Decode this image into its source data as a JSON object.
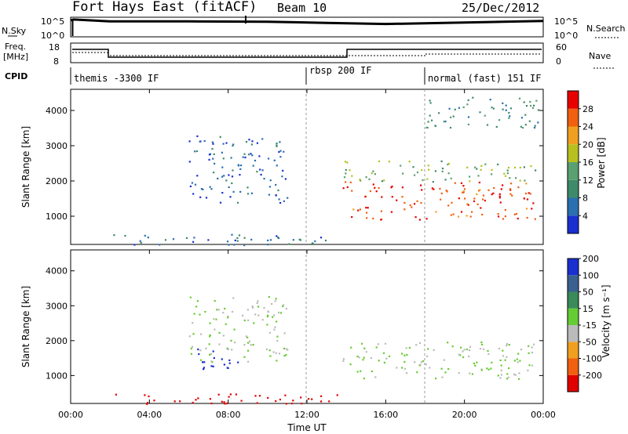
{
  "header": {
    "title": "Fort Hays East (fitACF)",
    "beam": "Beam 10",
    "date": "25/Dec/2012"
  },
  "sky_panel": {
    "left_label": "N.Sky",
    "left_ticks": [
      "10^5",
      "10^0"
    ],
    "right_label": "N.Search",
    "right_ticks": [
      "10^5",
      "10^0"
    ]
  },
  "freq_panel": {
    "left_label_line1": "Freq.",
    "left_label_line2": "[MHz]",
    "left_ticks": [
      "18",
      "8"
    ],
    "right_label": "Nave",
    "right_ticks": [
      "60",
      "0"
    ]
  },
  "cpid_panel": {
    "label": "CPID",
    "segments": [
      {
        "label": "themis -3300 IF"
      },
      {
        "label": "rbsp 200 IF"
      },
      {
        "label": "normal (fast) 151 IF"
      }
    ]
  },
  "power_panel": {
    "ylabel": "Slant Range [km]",
    "yticks": [
      "1000",
      "2000",
      "3000",
      "4000"
    ],
    "colorbar_label": "Power [dB]",
    "colorbar_ticks": [
      "4",
      "8",
      "12",
      "16",
      "20",
      "24",
      "28"
    ]
  },
  "velocity_panel": {
    "ylabel": "Slant Range [km]",
    "yticks": [
      "1000",
      "2000",
      "3000",
      "4000"
    ],
    "colorbar_label": "Velocity [m s⁻¹]",
    "colorbar_ticks": [
      "200",
      "100",
      "50",
      "15",
      "-15",
      "-50",
      "-100",
      "-200"
    ]
  },
  "x_axis": {
    "label": "Time UT",
    "ticks": [
      "00:00",
      "04:00",
      "08:00",
      "12:00",
      "16:00",
      "20:00",
      "00:00"
    ]
  },
  "colors": {
    "power_scale": [
      "#1a2fd0",
      "#2a6fb0",
      "#3f8a6a",
      "#5aa070",
      "#b8c020",
      "#f0a020",
      "#f06010",
      "#e80000"
    ],
    "velocity_scale": [
      "#1a2fd0",
      "#3a6090",
      "#3a8a5a",
      "#66cc33",
      "#bbbbbb",
      "#f0a020",
      "#f06010",
      "#e00000"
    ]
  },
  "chart_data": [
    {
      "type": "line",
      "title": "N.Sky",
      "x_unit": "hours UT",
      "series": [
        {
          "x": [
            0,
            0.15,
            2,
            6,
            10,
            13,
            16,
            20,
            24
          ],
          "y": [
            4.2,
            4.4,
            3.9,
            3.9,
            3.8,
            3.5,
            3.2,
            3.6,
            4.0
          ]
        }
      ],
      "ylim": [
        0,
        5
      ]
    },
    {
      "type": "line",
      "title": "Freq.",
      "x_unit": "hours UT",
      "series": [
        {
          "x": [
            0,
            2,
            2,
            14,
            14,
            24
          ],
          "y": [
            13.5,
            13.5,
            10.2,
            10.2,
            13.5,
            13.5
          ]
        }
      ],
      "ylim": [
        8,
        18
      ]
    },
    {
      "type": "heatmap",
      "title": "Power [dB]",
      "x_range": [
        0,
        24
      ],
      "y_range": [
        200,
        4600
      ],
      "zlim": [
        0,
        30
      ],
      "regions": [
        {
          "t": [
            6,
            11
          ],
          "range": [
            1400,
            3300
          ],
          "power": 5
        },
        {
          "t": [
            13.8,
            23.6
          ],
          "range": [
            900,
            2000
          ],
          "power": 26
        },
        {
          "t": [
            13.8,
            23.6
          ],
          "range": [
            2000,
            2600
          ],
          "power": 14
        },
        {
          "t": [
            18,
            23.8
          ],
          "range": [
            3500,
            4400
          ],
          "power": 10
        },
        {
          "t": [
            2,
            14
          ],
          "range": [
            200,
            500
          ],
          "power": 6
        }
      ]
    },
    {
      "type": "heatmap",
      "title": "Velocity [m s⁻¹]",
      "x_range": [
        0,
        24
      ],
      "y_range": [
        200,
        4600
      ],
      "zlim": [
        -250,
        250
      ],
      "regions": [
        {
          "t": [
            6,
            11
          ],
          "range": [
            1400,
            3300
          ],
          "velocity": 0
        },
        {
          "t": [
            6,
            8.5
          ],
          "range": [
            1200,
            1800
          ],
          "velocity": 30
        },
        {
          "t": [
            13.8,
            23.6
          ],
          "range": [
            900,
            2000
          ],
          "velocity": 0
        },
        {
          "t": [
            2,
            14
          ],
          "range": [
            200,
            500
          ],
          "velocity": -60
        }
      ]
    }
  ]
}
